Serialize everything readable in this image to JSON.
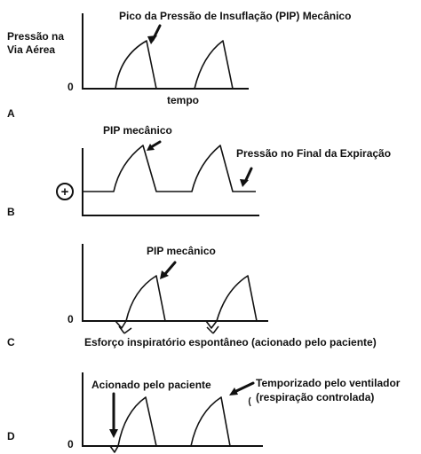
{
  "panel_a": {
    "letter": "A",
    "y_label_line1": "Pressão na",
    "y_label_line2": "Via Aérea",
    "zero": "0",
    "x_label": "tempo",
    "annotation": "Pico da Pressão de Insuflação (PIP) Mecânico"
  },
  "panel_b": {
    "letter": "B",
    "plus_symbol": "+",
    "annotation_pip": "PIP mecânico",
    "annotation_peep": "Pressão no Final da Expiração"
  },
  "panel_c": {
    "letter": "C",
    "zero": "0",
    "annotation_pip": "PIP mecânico",
    "annotation_effort": "Esforço inspiratório espontâneo (acionado pelo paciente)"
  },
  "panel_d": {
    "letter": "D",
    "zero": "0",
    "annotation_patient": "Acionado pelo paciente",
    "annotation_timed_line1": "Temporizado pelo ventilador",
    "annotation_timed_line2": "(respiração controlada)"
  }
}
